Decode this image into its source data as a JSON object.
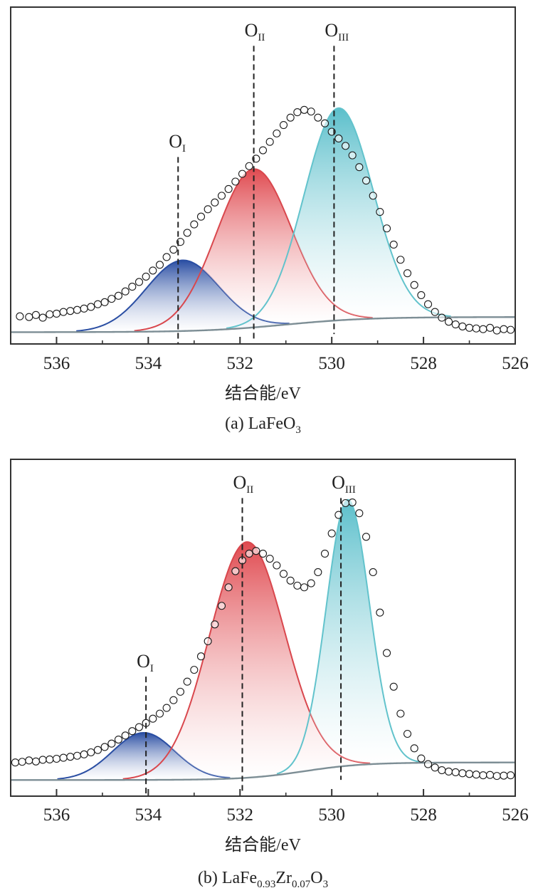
{
  "chart_data": [
    {
      "panel": "a",
      "type": "line",
      "title": "",
      "xlabel": "结合能/eV",
      "ylabel": "",
      "caption": {
        "prefix": "(a) ",
        "parts": [
          {
            "text": "LaFeO",
            "sub": "3"
          }
        ]
      },
      "xlim": [
        537,
        526
      ],
      "ylim": [
        0,
        1
      ],
      "xticks": [
        "536",
        "534",
        "532",
        "530",
        "528",
        "526"
      ],
      "xtick_values": [
        536,
        534,
        532,
        530,
        528,
        526
      ],
      "background": {
        "start": 0.08,
        "end": 0.035,
        "center": 531,
        "width": 1.8
      },
      "components": [
        {
          "name": "OI",
          "center": 533.25,
          "height": 0.21,
          "sigma": 0.8,
          "color_top": "#2a4ea3",
          "color_line": "#2a4ea3"
        },
        {
          "name": "OII",
          "center": 531.7,
          "height": 0.47,
          "sigma": 0.82,
          "color_top": "#e04a50",
          "color_line": "#d9474d"
        },
        {
          "name": "OIII",
          "center": 529.85,
          "height": 0.63,
          "sigma": 0.75,
          "color_top": "#5bbfcb",
          "color_line": "#62c3cc"
        }
      ],
      "experimental_points": [
        [
          536.8,
          0.082
        ],
        [
          536.6,
          0.08
        ],
        [
          536.45,
          0.086
        ],
        [
          536.3,
          0.078
        ],
        [
          536.15,
          0.088
        ],
        [
          536.0,
          0.09
        ],
        [
          535.85,
          0.095
        ],
        [
          535.7,
          0.098
        ],
        [
          535.55,
          0.101
        ],
        [
          535.4,
          0.105
        ],
        [
          535.25,
          0.11
        ],
        [
          535.1,
          0.118
        ],
        [
          534.95,
          0.124
        ],
        [
          534.8,
          0.134
        ],
        [
          534.65,
          0.143
        ],
        [
          534.5,
          0.156
        ],
        [
          534.35,
          0.17
        ],
        [
          534.2,
          0.184
        ],
        [
          534.05,
          0.2
        ],
        [
          533.9,
          0.218
        ],
        [
          533.75,
          0.235
        ],
        [
          533.6,
          0.258
        ],
        [
          533.45,
          0.28
        ],
        [
          533.3,
          0.303
        ],
        [
          533.15,
          0.33
        ],
        [
          533.0,
          0.355
        ],
        [
          532.85,
          0.378
        ],
        [
          532.7,
          0.4
        ],
        [
          532.55,
          0.42
        ],
        [
          532.4,
          0.44
        ],
        [
          532.25,
          0.46
        ],
        [
          532.1,
          0.482
        ],
        [
          531.95,
          0.505
        ],
        [
          531.8,
          0.528
        ],
        [
          531.65,
          0.55
        ],
        [
          531.5,
          0.575
        ],
        [
          531.35,
          0.6
        ],
        [
          531.2,
          0.625
        ],
        [
          531.05,
          0.65
        ],
        [
          530.9,
          0.672
        ],
        [
          530.75,
          0.688
        ],
        [
          530.6,
          0.695
        ],
        [
          530.45,
          0.69
        ],
        [
          530.3,
          0.672
        ],
        [
          530.15,
          0.655
        ],
        [
          530.0,
          0.63
        ],
        [
          529.85,
          0.61
        ],
        [
          529.7,
          0.588
        ],
        [
          529.55,
          0.56
        ],
        [
          529.4,
          0.525
        ],
        [
          529.25,
          0.485
        ],
        [
          529.1,
          0.44
        ],
        [
          528.95,
          0.392
        ],
        [
          528.8,
          0.343
        ],
        [
          528.65,
          0.295
        ],
        [
          528.5,
          0.25
        ],
        [
          528.35,
          0.21
        ],
        [
          528.2,
          0.175
        ],
        [
          528.05,
          0.145
        ],
        [
          527.9,
          0.118
        ],
        [
          527.75,
          0.095
        ],
        [
          527.6,
          0.078
        ],
        [
          527.45,
          0.066
        ],
        [
          527.3,
          0.058
        ],
        [
          527.15,
          0.052
        ],
        [
          527.0,
          0.048
        ],
        [
          526.85,
          0.046
        ],
        [
          526.7,
          0.044
        ],
        [
          526.55,
          0.048
        ],
        [
          526.4,
          0.04
        ],
        [
          526.25,
          0.044
        ],
        [
          526.1,
          0.042
        ]
      ],
      "annotations": [
        {
          "base": "O",
          "sub": "I",
          "x": 533.35,
          "y": 0.6
        },
        {
          "base": "O",
          "sub": "II",
          "x": 531.7,
          "y": 0.93
        },
        {
          "base": "O",
          "sub": "III",
          "x": 529.95,
          "y": 0.93
        }
      ]
    },
    {
      "panel": "b",
      "type": "line",
      "title": "",
      "xlabel": "结合能/eV",
      "ylabel": "",
      "caption": {
        "prefix": "(b) ",
        "parts": [
          {
            "text": "LaFe",
            "sub": "0.93"
          },
          {
            "text": "Zr",
            "sub": "0.07"
          },
          {
            "text": "O",
            "sub": "3"
          }
        ]
      },
      "xlim": [
        537,
        526
      ],
      "ylim": [
        0,
        1
      ],
      "xticks": [
        "536",
        "534",
        "532",
        "530",
        "528",
        "526"
      ],
      "xtick_values": [
        536,
        534,
        532,
        530,
        528,
        526
      ],
      "background": {
        "start": 0.1,
        "end": 0.048,
        "center": 530.6,
        "width": 1.3
      },
      "components": [
        {
          "name": "OI",
          "center": 534.1,
          "height": 0.14,
          "sigma": 0.68,
          "color_top": "#2a4ea3",
          "color_line": "#2a4ea3"
        },
        {
          "name": "OII",
          "center": 531.85,
          "height": 0.7,
          "sigma": 0.82,
          "color_top": "#e04a50",
          "color_line": "#d9474d"
        },
        {
          "name": "OIII",
          "center": 529.65,
          "height": 0.79,
          "sigma": 0.47,
          "color_top": "#5bbfcb",
          "color_line": "#62c3cc"
        }
      ],
      "experimental_points": [
        [
          536.9,
          0.1
        ],
        [
          536.75,
          0.102
        ],
        [
          536.6,
          0.106
        ],
        [
          536.45,
          0.103
        ],
        [
          536.3,
          0.108
        ],
        [
          536.15,
          0.109
        ],
        [
          536.0,
          0.111
        ],
        [
          535.85,
          0.114
        ],
        [
          535.7,
          0.117
        ],
        [
          535.55,
          0.12
        ],
        [
          535.4,
          0.124
        ],
        [
          535.25,
          0.13
        ],
        [
          535.1,
          0.137
        ],
        [
          534.95,
          0.146
        ],
        [
          534.8,
          0.156
        ],
        [
          534.65,
          0.168
        ],
        [
          534.5,
          0.18
        ],
        [
          534.35,
          0.193
        ],
        [
          534.2,
          0.205
        ],
        [
          534.05,
          0.217
        ],
        [
          533.9,
          0.23
        ],
        [
          533.75,
          0.245
        ],
        [
          533.6,
          0.262
        ],
        [
          533.45,
          0.285
        ],
        [
          533.3,
          0.31
        ],
        [
          533.15,
          0.34
        ],
        [
          533.0,
          0.375
        ],
        [
          532.85,
          0.415
        ],
        [
          532.7,
          0.46
        ],
        [
          532.55,
          0.51
        ],
        [
          532.4,
          0.565
        ],
        [
          532.25,
          0.62
        ],
        [
          532.1,
          0.668
        ],
        [
          531.95,
          0.7
        ],
        [
          531.8,
          0.72
        ],
        [
          531.65,
          0.728
        ],
        [
          531.5,
          0.72
        ],
        [
          531.35,
          0.705
        ],
        [
          531.2,
          0.685
        ],
        [
          531.05,
          0.66
        ],
        [
          530.9,
          0.64
        ],
        [
          530.75,
          0.625
        ],
        [
          530.6,
          0.62
        ],
        [
          530.45,
          0.632
        ],
        [
          530.3,
          0.665
        ],
        [
          530.15,
          0.72
        ],
        [
          530.0,
          0.78
        ],
        [
          529.85,
          0.835
        ],
        [
          529.7,
          0.87
        ],
        [
          529.55,
          0.872
        ],
        [
          529.4,
          0.84
        ],
        [
          529.25,
          0.77
        ],
        [
          529.1,
          0.665
        ],
        [
          528.95,
          0.545
        ],
        [
          528.8,
          0.425
        ],
        [
          528.65,
          0.325
        ],
        [
          528.5,
          0.245
        ],
        [
          528.35,
          0.185
        ],
        [
          528.2,
          0.142
        ],
        [
          528.05,
          0.112
        ],
        [
          527.9,
          0.095
        ],
        [
          527.75,
          0.085
        ],
        [
          527.6,
          0.077
        ],
        [
          527.45,
          0.073
        ],
        [
          527.3,
          0.071
        ],
        [
          527.15,
          0.068
        ],
        [
          527.0,
          0.066
        ],
        [
          526.85,
          0.064
        ],
        [
          526.7,
          0.062
        ],
        [
          526.55,
          0.063
        ],
        [
          526.4,
          0.06
        ],
        [
          526.25,
          0.061
        ],
        [
          526.1,
          0.062
        ]
      ],
      "annotations": [
        {
          "base": "O",
          "sub": "I",
          "x": 534.05,
          "y": 0.4
        },
        {
          "base": "O",
          "sub": "II",
          "x": 531.95,
          "y": 0.93
        },
        {
          "base": "O",
          "sub": "III",
          "x": 529.8,
          "y": 0.93
        }
      ]
    }
  ]
}
